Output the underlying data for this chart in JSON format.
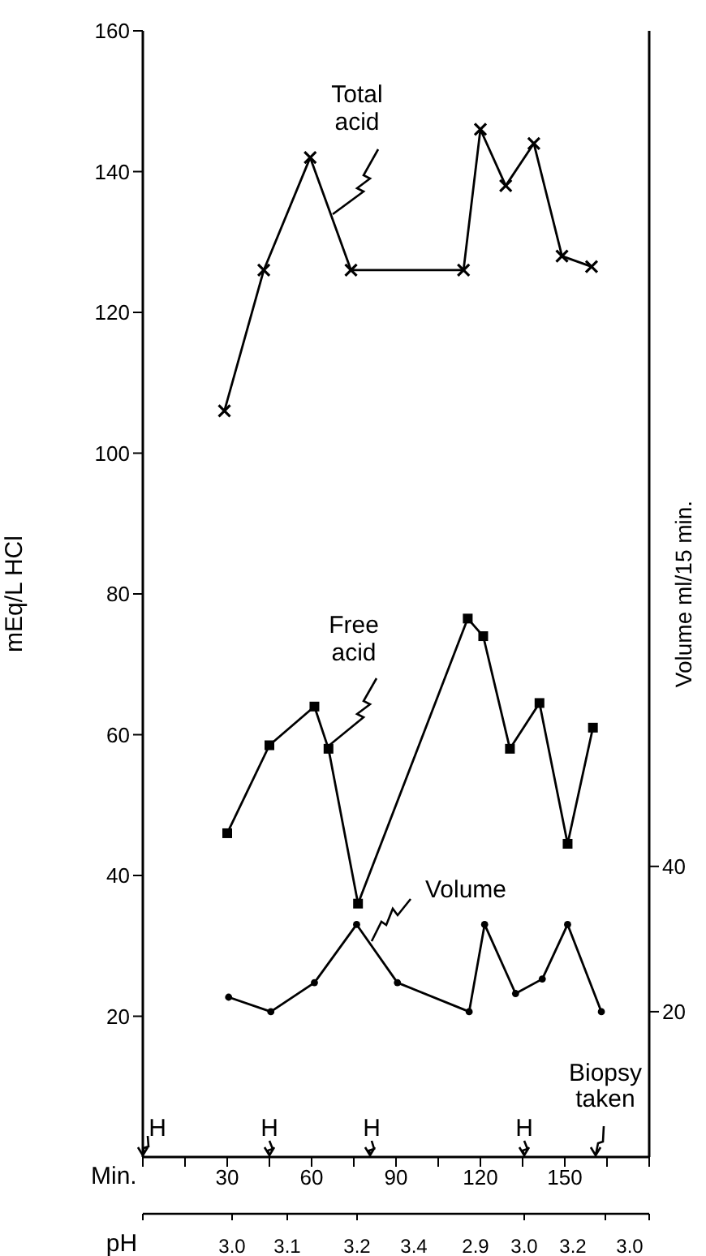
{
  "chart_data": {
    "type": "line",
    "xlabel": "Min.",
    "ylabel": "mEq/L HCl",
    "y2label": "Volume ml/15 min.",
    "xlim": [
      0,
      180
    ],
    "xticks": [
      {
        "value": 0,
        "label": null
      },
      {
        "value": 15,
        "label": null
      },
      30,
      {
        "value": 45,
        "label": null
      },
      60,
      {
        "value": 75,
        "label": null
      },
      90,
      {
        "value": 105,
        "label": null
      },
      120,
      {
        "value": 135,
        "label": null
      },
      150,
      {
        "value": 165,
        "label": null
      },
      {
        "value": 180,
        "label": null
      }
    ],
    "ylim": [
      0,
      160
    ],
    "yticks": [
      20,
      40,
      60,
      80,
      100,
      120,
      140,
      160
    ],
    "y2lim": [
      0,
      155
    ],
    "y2ticks": [
      20,
      40
    ],
    "line_style": "solid",
    "series": [
      {
        "name": "Total acid",
        "color": "#000000",
        "marker": "cross",
        "x": [
          29,
          43,
          59.5,
          74,
          114,
          120,
          129,
          139,
          149,
          159.5
        ],
        "values": [
          106,
          126,
          142,
          126,
          126,
          146,
          138,
          144,
          128,
          126.5
        ]
      },
      {
        "name": "Free acid",
        "color": "#000000",
        "marker": "square",
        "x": [
          30,
          45,
          61,
          66,
          76.5,
          115.5,
          121,
          130.5,
          141,
          151,
          160
        ],
        "values": [
          46,
          58.5,
          64,
          58,
          36,
          76.5,
          74,
          58,
          64.5,
          44.5,
          61
        ]
      },
      {
        "name": "Volume",
        "color": "#000000",
        "marker": "circle",
        "axis": "y2",
        "x": [
          30.5,
          45.5,
          61,
          76,
          90.5,
          116,
          121.5,
          132.5,
          142,
          151,
          163
        ],
        "values": [
          22,
          20,
          24,
          32,
          24,
          20,
          32,
          22.5,
          24.5,
          32,
          20
        ]
      }
    ],
    "annotations": [
      "H",
      "H",
      "H",
      "H",
      "Biopsy taken",
      "pH",
      "3.0",
      "3.1",
      "3.2",
      "3.4",
      "2.9",
      "3.0",
      "3.2",
      "3.0"
    ]
  }
}
